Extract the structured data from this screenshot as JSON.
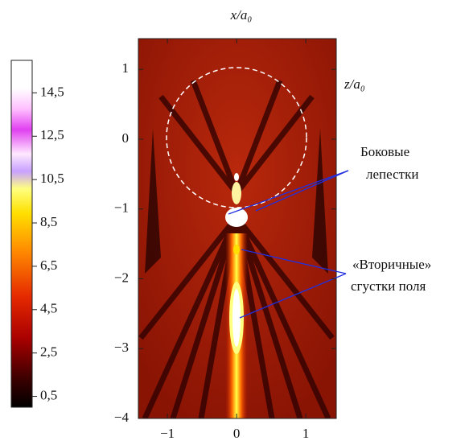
{
  "chart_data": {
    "type": "heatmap",
    "xlabel": "x/a₀",
    "ylabel": "z/a₀",
    "xlim": [
      -1.42,
      1.44
    ],
    "xticks": [
      {
        "value": -1,
        "label": "−1"
      },
      0,
      1
    ],
    "ylim": [
      -4,
      1.44
    ],
    "yticks": [
      1,
      0,
      {
        "value": -1,
        "label": "−1"
      },
      {
        "value": -2,
        "label": "−2"
      },
      {
        "value": -3,
        "label": "−3"
      },
      {
        "value": -4,
        "label": "−4"
      }
    ],
    "colorbar": {
      "clim": [
        0,
        16
      ],
      "ticks": [
        {
          "value": 14.5,
          "label": "14,5"
        },
        {
          "value": 12.5,
          "label": "12,5"
        },
        {
          "value": 10.5,
          "label": "10,5"
        },
        {
          "value": 8.5,
          "label": "8,5"
        },
        {
          "value": 6.5,
          "label": "6,5"
        },
        {
          "value": 4.5,
          "label": "4,5"
        },
        {
          "value": 2.5,
          "label": "2,5"
        },
        {
          "value": 0.5,
          "label": "0,5"
        }
      ]
    },
    "annotations": [
      {
        "lines": [
          "Боковые",
          "лепестки"
        ]
      },
      {
        "lines": [
          "«Вторичные»",
          "сгустки поля"
        ]
      }
    ]
  }
}
